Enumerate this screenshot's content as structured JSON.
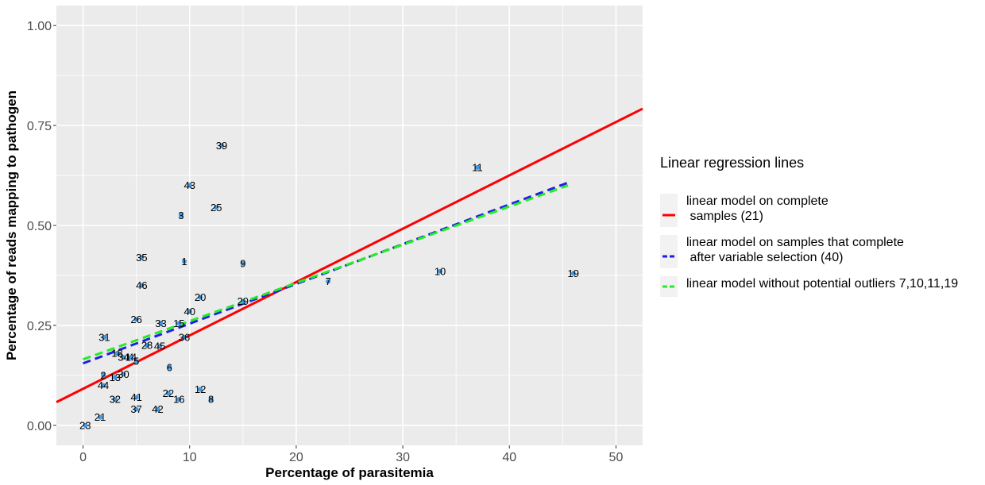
{
  "chart_data": {
    "type": "scatter",
    "xlabel": "Percentage of parasitemia",
    "ylabel": "Percentage of reads mapping to pathogen",
    "xlim": [
      -2.5,
      52.5
    ],
    "ylim": [
      -0.05,
      1.05
    ],
    "x_ticks": [
      0,
      10,
      20,
      30,
      40,
      50
    ],
    "x_tick_labels": [
      "0",
      "10",
      "20",
      "30",
      "40",
      "50"
    ],
    "y_ticks": [
      0,
      0.25,
      0.5,
      0.75,
      1.0
    ],
    "y_tick_labels": [
      "0.00",
      "0.25",
      "0.50",
      "0.75",
      "1.00"
    ],
    "grid": true,
    "point_color": "#3f9be8",
    "points": [
      {
        "label": "1",
        "x": 9.5,
        "y": 0.41
      },
      {
        "label": "2",
        "x": 1.9,
        "y": 0.125
      },
      {
        "label": "3",
        "x": 9.2,
        "y": 0.525
      },
      {
        "label": "4",
        "x": 4.5,
        "y": 0.17
      },
      {
        "label": "5",
        "x": 5.0,
        "y": 0.16
      },
      {
        "label": "6",
        "x": 8.1,
        "y": 0.145
      },
      {
        "label": "7",
        "x": 23.0,
        "y": 0.36
      },
      {
        "label": "8",
        "x": 12.0,
        "y": 0.065
      },
      {
        "label": "9",
        "x": 15.0,
        "y": 0.405
      },
      {
        "label": "10",
        "x": 33.5,
        "y": 0.385
      },
      {
        "label": "11",
        "x": 37.0,
        "y": 0.645
      },
      {
        "label": "12",
        "x": 11.0,
        "y": 0.09
      },
      {
        "label": "13",
        "x": 3.0,
        "y": 0.12
      },
      {
        "label": "14",
        "x": 4.5,
        "y": 0.17
      },
      {
        "label": "15",
        "x": 9.0,
        "y": 0.255
      },
      {
        "label": "16",
        "x": 9.0,
        "y": 0.065
      },
      {
        "label": "18",
        "x": 3.2,
        "y": 0.18
      },
      {
        "label": "19",
        "x": 46.0,
        "y": 0.38
      },
      {
        "label": "20",
        "x": 11.0,
        "y": 0.32
      },
      {
        "label": "21",
        "x": 1.6,
        "y": 0.02
      },
      {
        "label": "22",
        "x": 8.0,
        "y": 0.08
      },
      {
        "label": "23",
        "x": 0.2,
        "y": 0.0
      },
      {
        "label": "25",
        "x": 12.5,
        "y": 0.545
      },
      {
        "label": "26",
        "x": 5.0,
        "y": 0.265
      },
      {
        "label": "28",
        "x": 6.0,
        "y": 0.2
      },
      {
        "label": "29",
        "x": 15.0,
        "y": 0.31
      },
      {
        "label": "30",
        "x": 3.8,
        "y": 0.128
      },
      {
        "label": "31",
        "x": 2.0,
        "y": 0.22
      },
      {
        "label": "32",
        "x": 3.0,
        "y": 0.065
      },
      {
        "label": "33",
        "x": 7.3,
        "y": 0.255
      },
      {
        "label": "34",
        "x": 3.8,
        "y": 0.17
      },
      {
        "label": "35",
        "x": 5.5,
        "y": 0.42
      },
      {
        "label": "36",
        "x": 9.5,
        "y": 0.22
      },
      {
        "label": "37",
        "x": 5.0,
        "y": 0.04
      },
      {
        "label": "39",
        "x": 13.0,
        "y": 0.7
      },
      {
        "label": "40",
        "x": 10.0,
        "y": 0.285
      },
      {
        "label": "41",
        "x": 5.0,
        "y": 0.07
      },
      {
        "label": "42",
        "x": 7.0,
        "y": 0.04
      },
      {
        "label": "43",
        "x": 10.0,
        "y": 0.6
      },
      {
        "label": "44",
        "x": 1.9,
        "y": 0.1
      },
      {
        "label": "45",
        "x": 7.2,
        "y": 0.198
      },
      {
        "label": "46",
        "x": 5.5,
        "y": 0.35
      }
    ],
    "lines": [
      {
        "id": "red",
        "color": "#ff0000",
        "dash": "solid",
        "from": [
          -2.5,
          0.058
        ],
        "to": [
          52.5,
          0.792
        ]
      },
      {
        "id": "blue",
        "color": "#1f1fe6",
        "dash": "dashed",
        "from": [
          0,
          0.155
        ],
        "to": [
          45.5,
          0.607
        ]
      },
      {
        "id": "green",
        "color": "#22ee22",
        "dash": "dashed",
        "from": [
          0,
          0.165
        ],
        "to": [
          45.5,
          0.6
        ]
      }
    ],
    "legend": {
      "title": "Linear regression lines",
      "placement": "right",
      "items": [
        {
          "color": "#ff0000",
          "lines": [
            "linear model on complete",
            " samples (21)"
          ]
        },
        {
          "color": "#1f1fe6",
          "lines": [
            "linear model on samples that complete",
            " after variable selection (40)"
          ]
        },
        {
          "color": "#22ee22",
          "lines": [
            "linear model without potential outliers 7,10,11,19"
          ]
        }
      ]
    }
  }
}
